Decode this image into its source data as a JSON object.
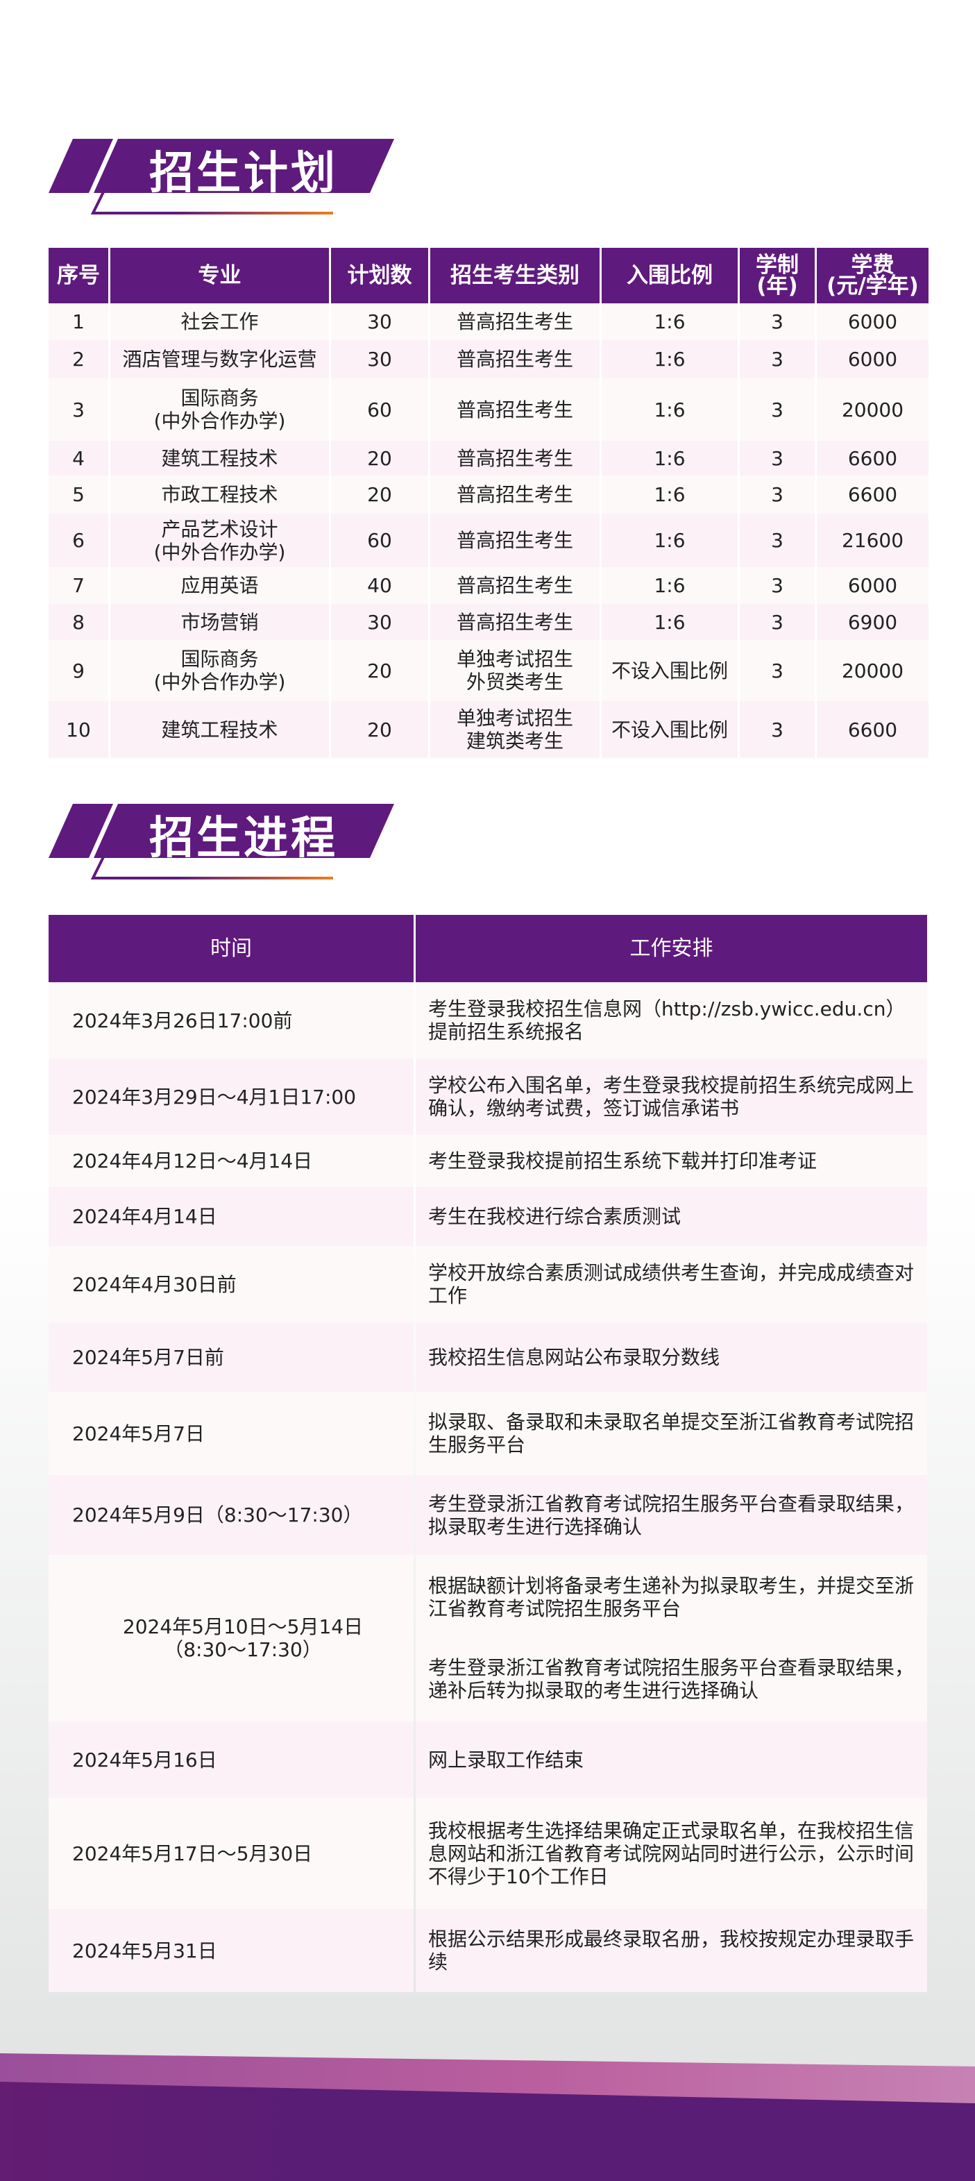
{
  "colors": {
    "brand_purple": "#5f1a7e",
    "accent_orange": "#ef7d1a",
    "row_light": "#fdf9f9",
    "row_pink": "#fcf1f7"
  },
  "section1": {
    "title": "招生计划"
  },
  "plan": {
    "headers": [
      "序号",
      "专业",
      "计划数",
      "招生考生类别",
      "入围比例",
      "学制\n(年)",
      "学费\n(元/学年)"
    ],
    "rows": [
      {
        "no": "1",
        "major": "社会工作",
        "count": "30",
        "type": "普高招生考生",
        "ratio": "1:6",
        "years": "3",
        "fee": "6000"
      },
      {
        "no": "2",
        "major": "酒店管理与数字化运营",
        "count": "30",
        "type": "普高招生考生",
        "ratio": "1:6",
        "years": "3",
        "fee": "6000"
      },
      {
        "no": "3",
        "major": "国际商务\n(中外合作办学)",
        "count": "60",
        "type": "普高招生考生",
        "ratio": "1:6",
        "years": "3",
        "fee": "20000"
      },
      {
        "no": "4",
        "major": "建筑工程技术",
        "count": "20",
        "type": "普高招生考生",
        "ratio": "1:6",
        "years": "3",
        "fee": "6600"
      },
      {
        "no": "5",
        "major": "市政工程技术",
        "count": "20",
        "type": "普高招生考生",
        "ratio": "1:6",
        "years": "3",
        "fee": "6600"
      },
      {
        "no": "6",
        "major": "产品艺术设计\n(中外合作办学)",
        "count": "60",
        "type": "普高招生考生",
        "ratio": "1:6",
        "years": "3",
        "fee": "21600"
      },
      {
        "no": "7",
        "major": "应用英语",
        "count": "40",
        "type": "普高招生考生",
        "ratio": "1:6",
        "years": "3",
        "fee": "6000"
      },
      {
        "no": "8",
        "major": "市场营销",
        "count": "30",
        "type": "普高招生考生",
        "ratio": "1:6",
        "years": "3",
        "fee": "6900"
      },
      {
        "no": "9",
        "major": "国际商务\n(中外合作办学)",
        "count": "20",
        "type": "单独考试招生\n外贸类考生",
        "ratio": "不设入围比例",
        "years": "3",
        "fee": "20000"
      },
      {
        "no": "10",
        "major": "建筑工程技术",
        "count": "20",
        "type": "单独考试招生\n建筑类考生",
        "ratio": "不设入围比例",
        "years": "3",
        "fee": "6600"
      }
    ]
  },
  "section2": {
    "title": "招生进程"
  },
  "schedule": {
    "headers": [
      "时间",
      "工作安排"
    ],
    "rows": [
      {
        "time": "2024年3月26日17:00前",
        "work": [
          "考生登录我校招生信息网（http://zsb.ywicc.edu.cn）提前招生系统报名"
        ]
      },
      {
        "time": "2024年3月29日～4月1日17:00",
        "work": [
          "学校公布入围名单，考生登录我校提前招生系统完成网上确认，缴纳考试费，签订诚信承诺书"
        ]
      },
      {
        "time": "2024年4月12日～4月14日",
        "work": [
          "考生登录我校提前招生系统下载并打印准考证"
        ]
      },
      {
        "time": "2024年4月14日",
        "work": [
          "考生在我校进行综合素质测试"
        ]
      },
      {
        "time": "2024年4月30日前",
        "work": [
          "学校开放综合素质测试成绩供考生查询，并完成成绩查对工作"
        ]
      },
      {
        "time": "2024年5月7日前",
        "work": [
          "我校招生信息网站公布录取分数线"
        ]
      },
      {
        "time": "2024年5月7日",
        "work": [
          "拟录取、备录取和未录取名单提交至浙江省教育考试院招生服务平台"
        ]
      },
      {
        "time": "2024年5月9日（8:30～17:30）",
        "work": [
          "考生登录浙江省教育考试院招生服务平台查看录取结果，拟录取考生进行选择确认"
        ]
      },
      {
        "time": "2024年5月10日～5月14日\n（8:30～17:30）",
        "work": [
          "根据缺额计划将备录考生递补为拟录取考生，并提交至浙江省教育考试院招生服务平台",
          "考生登录浙江省教育考试院招生服务平台查看录取结果，递补后转为拟录取的考生进行选择确认"
        ]
      },
      {
        "time": "2024年5月16日",
        "work": [
          "网上录取工作结束"
        ]
      },
      {
        "time": "2024年5月17日～5月30日",
        "work": [
          "我校根据考生选择结果确定正式录取名单，在我校招生信息网站和浙江省教育考试院网站同时进行公示，公示时间不得少于10个工作日"
        ]
      },
      {
        "time": "2024年5月31日",
        "work": [
          "根据公示结果形成最终录取名册，我校按规定办理录取手续"
        ]
      }
    ]
  }
}
